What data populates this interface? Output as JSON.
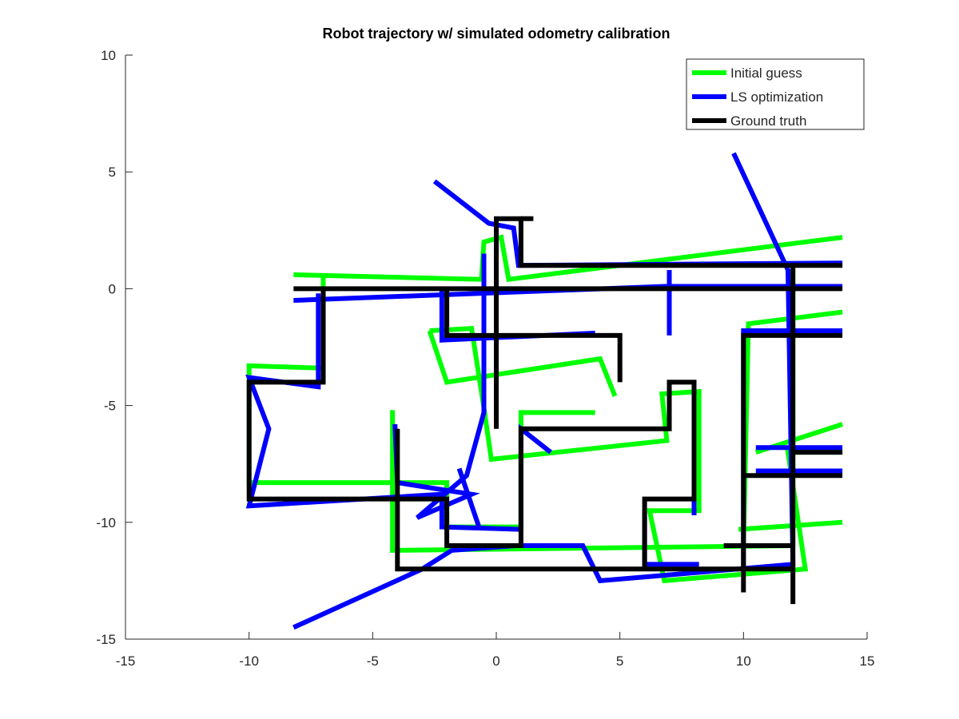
{
  "chart_data": {
    "type": "line",
    "title": "Robot trajectory w/ simulated odometry calibration",
    "xlabel": "",
    "ylabel": "",
    "xlim": [
      -15,
      15
    ],
    "ylim": [
      -15,
      10
    ],
    "xticks": [
      -15,
      -10,
      -5,
      0,
      5,
      10,
      15
    ],
    "yticks": [
      -15,
      -10,
      -5,
      0,
      5,
      10
    ],
    "grid": false,
    "legend_position": "top-right",
    "series": [
      {
        "name": "Initial guess",
        "color": "#00ff00",
        "points": [
          [
            -8.2,
            0.6
          ],
          [
            -0.6,
            0.4
          ],
          [
            -0.5,
            2.0
          ],
          [
            0.2,
            2.2
          ],
          [
            0.5,
            0.4
          ],
          [
            14,
            2.2
          ],
          [
            -7.0,
            0.6
          ],
          [
            -7.0,
            -3.4
          ],
          [
            -10.0,
            -3.3
          ],
          [
            -10.0,
            -8.3
          ],
          [
            -2.0,
            -8.3
          ],
          [
            -2.0,
            -10.2
          ],
          [
            1.0,
            -10.2
          ],
          [
            1.0,
            -5.3
          ],
          [
            4.0,
            -5.3
          ],
          [
            -4.2,
            -5.2
          ],
          [
            -4.2,
            -11.2
          ],
          [
            12.0,
            -11.0
          ],
          [
            12.0,
            0.8
          ],
          [
            -2.7,
            -1.8
          ],
          [
            -1.0,
            -1.7
          ],
          [
            -0.5,
            -5.1
          ],
          [
            -0.2,
            -7.3
          ],
          [
            6.9,
            -6.5
          ],
          [
            6.7,
            -4.5
          ],
          [
            8.2,
            -4.4
          ],
          [
            8.2,
            -9.5
          ],
          [
            6.2,
            -9.5
          ],
          [
            6.8,
            -12.5
          ],
          [
            12.5,
            -12.0
          ],
          [
            11.8,
            -7.0
          ],
          [
            14,
            -7.0
          ]
        ],
        "paths": [
          [
            [
              -8.2,
              0.6
            ],
            [
              -0.6,
              0.4
            ],
            [
              -0.5,
              2.0
            ],
            [
              0.2,
              2.2
            ],
            [
              0.5,
              0.4
            ],
            [
              14,
              2.2
            ]
          ],
          [
            [
              -7.0,
              0.6
            ],
            [
              -7.0,
              -3.4
            ],
            [
              -10.0,
              -3.3
            ],
            [
              -10.0,
              -8.3
            ],
            [
              -2.0,
              -8.3
            ],
            [
              -2.0,
              -10.2
            ],
            [
              1.0,
              -10.2
            ],
            [
              1.0,
              -5.3
            ],
            [
              4.0,
              -5.3
            ]
          ],
          [
            [
              -4.2,
              -5.2
            ],
            [
              -4.2,
              -11.2
            ],
            [
              12.0,
              -11.0
            ],
            [
              12.0,
              0.8
            ]
          ],
          [
            [
              -2.7,
              -1.8
            ],
            [
              -1.0,
              -1.7
            ],
            [
              -0.5,
              -5.1
            ],
            [
              -0.2,
              -7.3
            ],
            [
              6.9,
              -6.5
            ],
            [
              6.7,
              -4.5
            ],
            [
              8.2,
              -4.4
            ],
            [
              8.2,
              -9.5
            ],
            [
              6.2,
              -9.5
            ],
            [
              6.8,
              -12.5
            ],
            [
              12.5,
              -12.0
            ],
            [
              11.8,
              -7.0
            ],
            [
              14,
              -7.0
            ]
          ],
          [
            [
              -2.7,
              -1.8
            ],
            [
              -2.0,
              -4.0
            ],
            [
              4.2,
              -3.0
            ],
            [
              4.8,
              -4.6
            ]
          ],
          [
            [
              7.0,
              0.4
            ],
            [
              7.0,
              -1.8
            ]
          ],
          [
            [
              10.0,
              -11.0
            ],
            [
              10.2,
              -1.5
            ],
            [
              14,
              -1.0
            ]
          ],
          [
            [
              9.8,
              -10.3
            ],
            [
              14,
              -10.0
            ]
          ],
          [
            [
              10.5,
              -7.0
            ],
            [
              14,
              -5.8
            ]
          ]
        ]
      },
      {
        "name": "LS optimization",
        "color": "#0000ff",
        "points": [
          [
            -8.2,
            -0.5
          ],
          [
            -1.7,
            4.6
          ],
          [
            -0.3,
            2.8
          ],
          [
            0.7,
            2.6
          ],
          [
            0.9,
            1.0
          ],
          [
            7.0,
            1.0
          ]
        ],
        "paths": [
          [
            [
              -8.2,
              -0.5
            ],
            [
              6.8,
              0.1
            ],
            [
              14,
              0.1
            ]
          ],
          [
            [
              -7.2,
              -0.2
            ],
            [
              -7.2,
              -4.2
            ],
            [
              -10.0,
              -3.8
            ],
            [
              -9.2,
              -6.0
            ],
            [
              -10.0,
              -9.3
            ],
            [
              -2.2,
              -8.8
            ],
            [
              -2.2,
              -10.2
            ],
            [
              1.0,
              -10.3
            ],
            [
              1.0,
              -6.0
            ],
            [
              2.2,
              -7.0
            ]
          ],
          [
            [
              -2.5,
              4.6
            ],
            [
              -0.3,
              2.8
            ],
            [
              0.7,
              2.6
            ],
            [
              0.9,
              1.0
            ],
            [
              14,
              1.1
            ]
          ],
          [
            [
              -2.2,
              0.1
            ],
            [
              -2.2,
              -2.2
            ],
            [
              4.0,
              -1.9
            ]
          ],
          [
            [
              -8.2,
              -14.5
            ],
            [
              -3.0,
              -12.0
            ],
            [
              -1.8,
              -11.2
            ],
            [
              0.8,
              -11.0
            ],
            [
              3.5,
              -11.0
            ],
            [
              4.2,
              -12.5
            ],
            [
              12.0,
              -11.8
            ],
            [
              11.8,
              0.8
            ],
            [
              9.6,
              5.8
            ]
          ],
          [
            [
              -4.1,
              -5.8
            ],
            [
              -4.0,
              -8.3
            ],
            [
              -1.0,
              -8.8
            ],
            [
              -3.2,
              -9.8
            ],
            [
              -1.2,
              -8.0
            ],
            [
              -0.5,
              -5.3
            ],
            [
              -0.5,
              1.5
            ]
          ],
          [
            [
              -1.5,
              -7.7
            ],
            [
              -0.7,
              -10.2
            ]
          ],
          [
            [
              7.0,
              0.8
            ],
            [
              7.0,
              -2.0
            ]
          ],
          [
            [
              6.0,
              -9.5
            ],
            [
              6.0,
              -11.8
            ],
            [
              8.2,
              -11.8
            ]
          ],
          [
            [
              10.0,
              -12.0
            ],
            [
              10.0,
              -1.8
            ],
            [
              14,
              -1.8
            ]
          ],
          [
            [
              8.0,
              -4.5
            ],
            [
              8.0,
              -9.7
            ]
          ],
          [
            [
              10.5,
              -7.8
            ],
            [
              14,
              -7.8
            ]
          ],
          [
            [
              10.5,
              -6.8
            ],
            [
              14,
              -6.8
            ]
          ]
        ]
      },
      {
        "name": "Ground truth",
        "color": "#000000",
        "points": [
          [
            -8.2,
            0
          ],
          [
            14,
            0
          ]
        ],
        "paths": [
          [
            [
              -8.2,
              0
            ],
            [
              14,
              0
            ]
          ],
          [
            [
              -7,
              0
            ],
            [
              -7,
              -4
            ],
            [
              -10,
              -4
            ],
            [
              -10,
              -9
            ],
            [
              -2,
              -9
            ],
            [
              -2,
              -11
            ],
            [
              1,
              -11
            ],
            [
              1,
              -6
            ],
            [
              7,
              -6
            ],
            [
              7,
              -4
            ],
            [
              8,
              -4
            ],
            [
              8,
              -9
            ],
            [
              6,
              -9
            ],
            [
              6,
              -12
            ]
          ],
          [
            [
              -4,
              -6
            ],
            [
              -4,
              -12
            ],
            [
              12,
              -12
            ],
            [
              12,
              1
            ],
            [
              1,
              1
            ],
            [
              1,
              3
            ],
            [
              0,
              3
            ],
            [
              0,
              -6
            ]
          ],
          [
            [
              -2,
              0
            ],
            [
              -2,
              -2
            ],
            [
              5,
              -2
            ],
            [
              5,
              -4
            ]
          ],
          [
            [
              1,
              3
            ],
            [
              1.5,
              3
            ]
          ],
          [
            [
              12,
              1
            ],
            [
              14,
              1
            ]
          ],
          [
            [
              10,
              -13
            ],
            [
              10,
              -2
            ],
            [
              14,
              -2
            ]
          ],
          [
            [
              9.2,
              -11
            ],
            [
              12,
              -11
            ]
          ],
          [
            [
              10,
              -8
            ],
            [
              14,
              -8
            ]
          ],
          [
            [
              12,
              -7
            ],
            [
              14,
              -7
            ]
          ],
          [
            [
              12,
              -12
            ],
            [
              12,
              -13.5
            ]
          ]
        ]
      }
    ]
  }
}
